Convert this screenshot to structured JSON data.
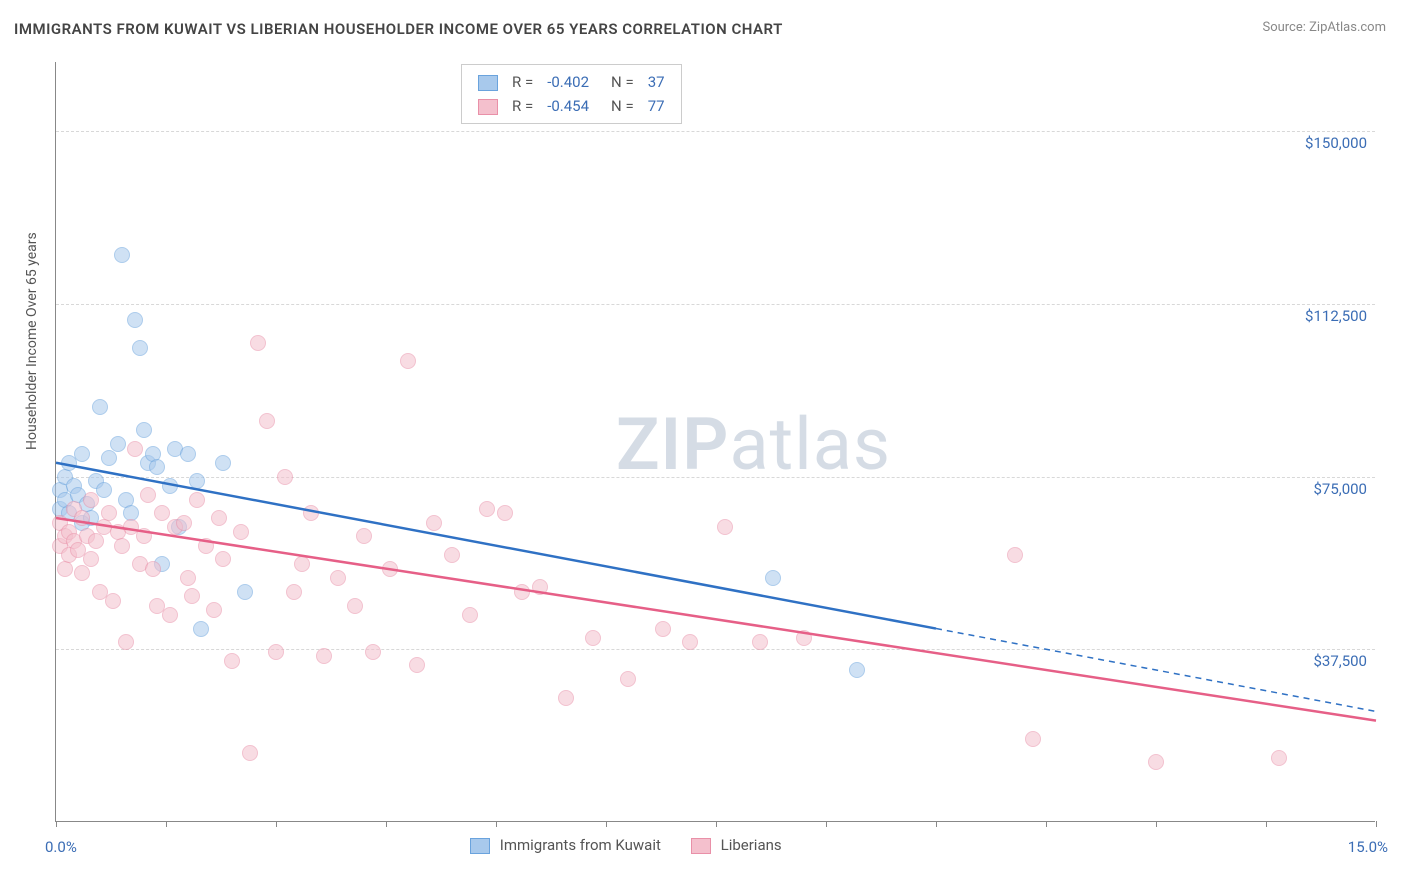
{
  "title": "IMMIGRANTS FROM KUWAIT VS LIBERIAN HOUSEHOLDER INCOME OVER 65 YEARS CORRELATION CHART",
  "source_prefix": "Source: ",
  "source_name": "ZipAtlas.com",
  "y_axis_label": "Householder Income Over 65 years",
  "watermark_bold": "ZIP",
  "watermark_light": "atlas",
  "chart": {
    "type": "scatter",
    "background_color": "#ffffff",
    "grid_color": "#d8d8d8",
    "axis_color": "#888888",
    "text_color": "#555555",
    "value_color": "#3b6db5",
    "xlim": [
      0.0,
      15.0
    ],
    "ylim": [
      0,
      165000
    ],
    "x_tick_positions": [
      0.0,
      1.25,
      2.5,
      3.75,
      5.0,
      6.25,
      7.5,
      8.75,
      10.0,
      11.25,
      12.5,
      13.75,
      15.0
    ],
    "x_tick_labels": {
      "0": "0.0%",
      "15": "15.0%"
    },
    "y_gridlines": [
      37500,
      75000,
      112500,
      150000
    ],
    "y_tick_labels": {
      "37500": "$37,500",
      "75000": "$75,000",
      "112500": "$112,500",
      "150000": "$150,000"
    },
    "marker_radius": 8,
    "marker_opacity": 0.55,
    "series": [
      {
        "id": "kuwait",
        "label": "Immigrants from Kuwait",
        "color_fill": "#a8c9ec",
        "color_stroke": "#6aa3dd",
        "line_color": "#2f71c4",
        "line_width": 2.5,
        "R": "-0.402",
        "N": "37",
        "trend": {
          "x1": 0.0,
          "y1": 78000,
          "x2": 10.0,
          "y2": 42000,
          "dash_x2": 15.0,
          "dash_y2": 24000
        },
        "points": [
          [
            0.05,
            72000
          ],
          [
            0.05,
            68000
          ],
          [
            0.1,
            75000
          ],
          [
            0.1,
            70000
          ],
          [
            0.15,
            67000
          ],
          [
            0.15,
            78000
          ],
          [
            0.2,
            73000
          ],
          [
            0.25,
            71000
          ],
          [
            0.3,
            80000
          ],
          [
            0.3,
            65000
          ],
          [
            0.35,
            69000
          ],
          [
            0.4,
            66000
          ],
          [
            0.45,
            74000
          ],
          [
            0.5,
            90000
          ],
          [
            0.55,
            72000
          ],
          [
            0.6,
            79000
          ],
          [
            0.7,
            82000
          ],
          [
            0.75,
            123000
          ],
          [
            0.8,
            70000
          ],
          [
            0.85,
            67000
          ],
          [
            0.9,
            109000
          ],
          [
            0.95,
            103000
          ],
          [
            1.0,
            85000
          ],
          [
            1.05,
            78000
          ],
          [
            1.1,
            80000
          ],
          [
            1.15,
            77000
          ],
          [
            1.2,
            56000
          ],
          [
            1.3,
            73000
          ],
          [
            1.35,
            81000
          ],
          [
            1.4,
            64000
          ],
          [
            1.5,
            80000
          ],
          [
            1.6,
            74000
          ],
          [
            1.65,
            42000
          ],
          [
            1.9,
            78000
          ],
          [
            2.15,
            50000
          ],
          [
            8.15,
            53000
          ],
          [
            9.1,
            33000
          ]
        ]
      },
      {
        "id": "liberians",
        "label": "Liberians",
        "color_fill": "#f4c0cd",
        "color_stroke": "#e990a8",
        "line_color": "#e65f87",
        "line_width": 2.5,
        "R": "-0.454",
        "N": "77",
        "trend": {
          "x1": 0.0,
          "y1": 66000,
          "x2": 15.0,
          "y2": 22000
        },
        "points": [
          [
            0.05,
            65000
          ],
          [
            0.05,
            60000
          ],
          [
            0.1,
            62000
          ],
          [
            0.1,
            55000
          ],
          [
            0.15,
            63000
          ],
          [
            0.15,
            58000
          ],
          [
            0.2,
            61000
          ],
          [
            0.2,
            68000
          ],
          [
            0.25,
            59000
          ],
          [
            0.3,
            66000
          ],
          [
            0.3,
            54000
          ],
          [
            0.35,
            62000
          ],
          [
            0.4,
            57000
          ],
          [
            0.4,
            70000
          ],
          [
            0.45,
            61000
          ],
          [
            0.5,
            50000
          ],
          [
            0.55,
            64000
          ],
          [
            0.6,
            67000
          ],
          [
            0.65,
            48000
          ],
          [
            0.7,
            63000
          ],
          [
            0.75,
            60000
          ],
          [
            0.8,
            39000
          ],
          [
            0.85,
            64000
          ],
          [
            0.9,
            81000
          ],
          [
            0.95,
            56000
          ],
          [
            1.0,
            62000
          ],
          [
            1.05,
            71000
          ],
          [
            1.1,
            55000
          ],
          [
            1.15,
            47000
          ],
          [
            1.2,
            67000
          ],
          [
            1.3,
            45000
          ],
          [
            1.35,
            64000
          ],
          [
            1.45,
            65000
          ],
          [
            1.5,
            53000
          ],
          [
            1.55,
            49000
          ],
          [
            1.6,
            70000
          ],
          [
            1.7,
            60000
          ],
          [
            1.8,
            46000
          ],
          [
            1.85,
            66000
          ],
          [
            1.9,
            57000
          ],
          [
            2.0,
            35000
          ],
          [
            2.1,
            63000
          ],
          [
            2.2,
            15000
          ],
          [
            2.3,
            104000
          ],
          [
            2.4,
            87000
          ],
          [
            2.5,
            37000
          ],
          [
            2.6,
            75000
          ],
          [
            2.7,
            50000
          ],
          [
            2.8,
            56000
          ],
          [
            2.9,
            67000
          ],
          [
            3.05,
            36000
          ],
          [
            3.2,
            53000
          ],
          [
            3.4,
            47000
          ],
          [
            3.5,
            62000
          ],
          [
            3.6,
            37000
          ],
          [
            3.8,
            55000
          ],
          [
            4.0,
            100000
          ],
          [
            4.1,
            34000
          ],
          [
            4.3,
            65000
          ],
          [
            4.5,
            58000
          ],
          [
            4.7,
            45000
          ],
          [
            4.9,
            68000
          ],
          [
            5.1,
            67000
          ],
          [
            5.3,
            50000
          ],
          [
            5.5,
            51000
          ],
          [
            5.8,
            27000
          ],
          [
            6.1,
            40000
          ],
          [
            6.5,
            31000
          ],
          [
            6.9,
            42000
          ],
          [
            7.2,
            39000
          ],
          [
            7.6,
            64000
          ],
          [
            8.0,
            39000
          ],
          [
            8.5,
            40000
          ],
          [
            10.9,
            58000
          ],
          [
            11.1,
            18000
          ],
          [
            12.5,
            13000
          ],
          [
            13.9,
            14000
          ]
        ]
      }
    ],
    "legend_top": {
      "R_label": "R =",
      "N_label": "N ="
    },
    "legend_bottom_items": [
      {
        "series": "kuwait"
      },
      {
        "series": "liberians"
      }
    ]
  }
}
